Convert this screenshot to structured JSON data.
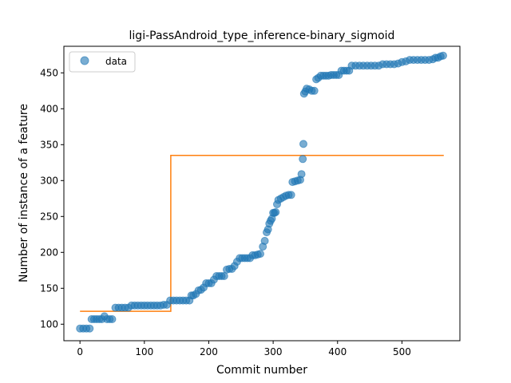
{
  "chart_data": {
    "type": "scatter",
    "title": "ligi-PassAndroid_type_inference-binary_sigmoid",
    "xlabel": "Commit number",
    "ylabel": "Number of instance of a feature",
    "xlim": [
      -25,
      590
    ],
    "ylim": [
      77,
      487
    ],
    "xticks": [
      0,
      100,
      200,
      300,
      400,
      500
    ],
    "yticks": [
      100,
      150,
      200,
      250,
      300,
      350,
      400,
      450
    ],
    "grid": false,
    "legend": {
      "location": "upper-left",
      "entries": [
        "data"
      ]
    },
    "colors": {
      "data": "#1f77b4",
      "fit": "#ff7f0e"
    },
    "series": [
      {
        "name": "data",
        "kind": "scatter",
        "points": [
          [
            0,
            94
          ],
          [
            5,
            94
          ],
          [
            10,
            94
          ],
          [
            15,
            94
          ],
          [
            18,
            107
          ],
          [
            22,
            107
          ],
          [
            26,
            107
          ],
          [
            30,
            107
          ],
          [
            34,
            107
          ],
          [
            38,
            111
          ],
          [
            42,
            107
          ],
          [
            46,
            107
          ],
          [
            50,
            107
          ],
          [
            55,
            123
          ],
          [
            60,
            123
          ],
          [
            65,
            123
          ],
          [
            70,
            123
          ],
          [
            75,
            123
          ],
          [
            80,
            126
          ],
          [
            85,
            126
          ],
          [
            90,
            126
          ],
          [
            95,
            126
          ],
          [
            100,
            126
          ],
          [
            105,
            126
          ],
          [
            110,
            126
          ],
          [
            115,
            126
          ],
          [
            120,
            126
          ],
          [
            125,
            126
          ],
          [
            130,
            127
          ],
          [
            135,
            127
          ],
          [
            140,
            133
          ],
          [
            145,
            133
          ],
          [
            150,
            133
          ],
          [
            155,
            133
          ],
          [
            160,
            133
          ],
          [
            165,
            133
          ],
          [
            170,
            133
          ],
          [
            173,
            140
          ],
          [
            176,
            140
          ],
          [
            180,
            142
          ],
          [
            184,
            147
          ],
          [
            188,
            148
          ],
          [
            192,
            151
          ],
          [
            196,
            157
          ],
          [
            200,
            157
          ],
          [
            204,
            157
          ],
          [
            208,
            162
          ],
          [
            212,
            167
          ],
          [
            216,
            167
          ],
          [
            220,
            167
          ],
          [
            224,
            167
          ],
          [
            228,
            176
          ],
          [
            232,
            177
          ],
          [
            236,
            177
          ],
          [
            240,
            181
          ],
          [
            244,
            187
          ],
          [
            248,
            192
          ],
          [
            252,
            192
          ],
          [
            256,
            192
          ],
          [
            260,
            192
          ],
          [
            264,
            192
          ],
          [
            268,
            196
          ],
          [
            272,
            196
          ],
          [
            276,
            197
          ],
          [
            280,
            198
          ],
          [
            284,
            208
          ],
          [
            287,
            216
          ],
          [
            290,
            228
          ],
          [
            292,
            232
          ],
          [
            294,
            240
          ],
          [
            296,
            244
          ],
          [
            298,
            247
          ],
          [
            300,
            255
          ],
          [
            302,
            255
          ],
          [
            304,
            256
          ],
          [
            306,
            267
          ],
          [
            308,
            273
          ],
          [
            312,
            275
          ],
          [
            316,
            277
          ],
          [
            320,
            279
          ],
          [
            324,
            280
          ],
          [
            328,
            280
          ],
          [
            330,
            298
          ],
          [
            334,
            299
          ],
          [
            338,
            300
          ],
          [
            342,
            301
          ],
          [
            344,
            309
          ],
          [
            346,
            330
          ],
          [
            347,
            351
          ],
          [
            348,
            421
          ],
          [
            350,
            424
          ],
          [
            352,
            428
          ],
          [
            356,
            427
          ],
          [
            360,
            425
          ],
          [
            364,
            425
          ],
          [
            367,
            441
          ],
          [
            370,
            443
          ],
          [
            374,
            446
          ],
          [
            378,
            446
          ],
          [
            382,
            446
          ],
          [
            386,
            446
          ],
          [
            390,
            447
          ],
          [
            394,
            447
          ],
          [
            398,
            447
          ],
          [
            402,
            447
          ],
          [
            406,
            453
          ],
          [
            410,
            453
          ],
          [
            414,
            453
          ],
          [
            418,
            453
          ],
          [
            422,
            460
          ],
          [
            428,
            460
          ],
          [
            434,
            460
          ],
          [
            440,
            460
          ],
          [
            446,
            460
          ],
          [
            452,
            460
          ],
          [
            458,
            460
          ],
          [
            464,
            460
          ],
          [
            470,
            462
          ],
          [
            476,
            462
          ],
          [
            482,
            462
          ],
          [
            488,
            462
          ],
          [
            494,
            463
          ],
          [
            500,
            465
          ],
          [
            506,
            466
          ],
          [
            512,
            468
          ],
          [
            518,
            468
          ],
          [
            524,
            468
          ],
          [
            530,
            468
          ],
          [
            536,
            468
          ],
          [
            542,
            468
          ],
          [
            548,
            469
          ],
          [
            552,
            471
          ],
          [
            556,
            471
          ],
          [
            560,
            473
          ],
          [
            564,
            474
          ]
        ]
      },
      {
        "name": "",
        "kind": "line",
        "points": [
          [
            0,
            118
          ],
          [
            141,
            118
          ],
          [
            141,
            335
          ],
          [
            565,
            335
          ]
        ]
      }
    ]
  }
}
